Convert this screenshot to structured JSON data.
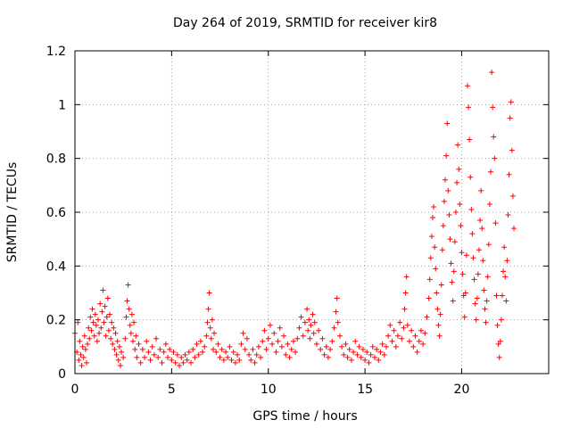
{
  "chart_data": {
    "type": "scatter",
    "title": "Day 264 of 2019, SRMTID for receiver kir8",
    "xlabel": "GPS time / hours",
    "ylabel": "SRMTID / TECUs",
    "xlim": [
      0,
      24.5
    ],
    "ylim": [
      0,
      1.2
    ],
    "x_ticks": [
      0,
      5,
      10,
      15,
      20
    ],
    "x_tick_labels": [
      "0",
      "5",
      "10",
      "15",
      "20"
    ],
    "y_ticks": [
      0,
      0.2,
      0.4,
      0.6,
      0.8,
      1,
      1.2
    ],
    "y_tick_labels": [
      "0",
      "0.2",
      "0.4",
      "0.6",
      "0.8",
      "1",
      "1.2"
    ],
    "grid": true,
    "marker": "+",
    "series": [
      {
        "name": "SRMTID",
        "color": "#ff0000",
        "points": [
          [
            0.0,
            0.15
          ],
          [
            0.1,
            0.08
          ],
          [
            0.15,
            0.19
          ],
          [
            0.2,
            0.05
          ],
          [
            0.25,
            0.12
          ],
          [
            0.3,
            0.07
          ],
          [
            0.35,
            0.03
          ],
          [
            0.4,
            0.1
          ],
          [
            0.45,
            0.06
          ],
          [
            0.5,
            0.14
          ],
          [
            0.55,
            0.09
          ],
          [
            0.6,
            0.04
          ],
          [
            0.65,
            0.11
          ],
          [
            0.7,
            0.17
          ],
          [
            0.75,
            0.13
          ],
          [
            0.8,
            0.21
          ],
          [
            0.85,
            0.16
          ],
          [
            0.9,
            0.24
          ],
          [
            0.95,
            0.19
          ],
          [
            1.0,
            0.14
          ],
          [
            1.05,
            0.22
          ],
          [
            1.1,
            0.18
          ],
          [
            1.15,
            0.12
          ],
          [
            1.2,
            0.2
          ],
          [
            1.25,
            0.15
          ],
          [
            1.3,
            0.26
          ],
          [
            1.35,
            0.17
          ],
          [
            1.4,
            0.23
          ],
          [
            1.45,
            0.31
          ],
          [
            1.5,
            0.19
          ],
          [
            1.55,
            0.25
          ],
          [
            1.6,
            0.14
          ],
          [
            1.65,
            0.21
          ],
          [
            1.7,
            0.28
          ],
          [
            1.75,
            0.16
          ],
          [
            1.8,
            0.22
          ],
          [
            1.85,
            0.13
          ],
          [
            1.9,
            0.19
          ],
          [
            1.95,
            0.11
          ],
          [
            2.0,
            0.17
          ],
          [
            2.05,
            0.09
          ],
          [
            2.1,
            0.15
          ],
          [
            2.15,
            0.07
          ],
          [
            2.2,
            0.12
          ],
          [
            2.25,
            0.05
          ],
          [
            2.3,
            0.1
          ],
          [
            2.35,
            0.03
          ],
          [
            2.4,
            0.08
          ],
          [
            2.5,
            0.06
          ],
          [
            2.6,
            0.13
          ],
          [
            2.65,
            0.21
          ],
          [
            2.7,
            0.27
          ],
          [
            2.75,
            0.33
          ],
          [
            2.8,
            0.24
          ],
          [
            2.85,
            0.18
          ],
          [
            2.9,
            0.15
          ],
          [
            2.95,
            0.22
          ],
          [
            3.0,
            0.12
          ],
          [
            3.05,
            0.19
          ],
          [
            3.1,
            0.09
          ],
          [
            3.15,
            0.14
          ],
          [
            3.2,
            0.06
          ],
          [
            3.3,
            0.11
          ],
          [
            3.4,
            0.04
          ],
          [
            3.5,
            0.09
          ],
          [
            3.6,
            0.06
          ],
          [
            3.7,
            0.12
          ],
          [
            3.8,
            0.08
          ],
          [
            3.9,
            0.05
          ],
          [
            4.0,
            0.1
          ],
          [
            4.1,
            0.07
          ],
          [
            4.2,
            0.13
          ],
          [
            4.3,
            0.06
          ],
          [
            4.4,
            0.09
          ],
          [
            4.5,
            0.04
          ],
          [
            4.6,
            0.08
          ],
          [
            4.7,
            0.11
          ],
          [
            4.8,
            0.06
          ],
          [
            4.9,
            0.09
          ],
          [
            5.0,
            0.05
          ],
          [
            5.1,
            0.08
          ],
          [
            5.2,
            0.04
          ],
          [
            5.3,
            0.07
          ],
          [
            5.4,
            0.03
          ],
          [
            5.5,
            0.06
          ],
          [
            5.6,
            0.04
          ],
          [
            5.7,
            0.07
          ],
          [
            5.8,
            0.05
          ],
          [
            5.9,
            0.08
          ],
          [
            6.0,
            0.04
          ],
          [
            6.1,
            0.09
          ],
          [
            6.2,
            0.06
          ],
          [
            6.3,
            0.11
          ],
          [
            6.4,
            0.07
          ],
          [
            6.5,
            0.12
          ],
          [
            6.6,
            0.08
          ],
          [
            6.7,
            0.1
          ],
          [
            6.8,
            0.14
          ],
          [
            6.85,
            0.19
          ],
          [
            6.9,
            0.24
          ],
          [
            6.95,
            0.3
          ],
          [
            7.0,
            0.17
          ],
          [
            7.05,
            0.13
          ],
          [
            7.1,
            0.2
          ],
          [
            7.15,
            0.09
          ],
          [
            7.2,
            0.15
          ],
          [
            7.3,
            0.08
          ],
          [
            7.4,
            0.11
          ],
          [
            7.5,
            0.06
          ],
          [
            7.6,
            0.09
          ],
          [
            7.7,
            0.05
          ],
          [
            7.8,
            0.08
          ],
          [
            7.9,
            0.06
          ],
          [
            8.0,
            0.1
          ],
          [
            8.1,
            0.05
          ],
          [
            8.2,
            0.08
          ],
          [
            8.3,
            0.04
          ],
          [
            8.4,
            0.07
          ],
          [
            8.5,
            0.05
          ],
          [
            8.6,
            0.11
          ],
          [
            8.7,
            0.15
          ],
          [
            8.8,
            0.09
          ],
          [
            8.9,
            0.13
          ],
          [
            9.0,
            0.07
          ],
          [
            9.1,
            0.05
          ],
          [
            9.2,
            0.09
          ],
          [
            9.3,
            0.04
          ],
          [
            9.4,
            0.07
          ],
          [
            9.5,
            0.1
          ],
          [
            9.6,
            0.06
          ],
          [
            9.7,
            0.12
          ],
          [
            9.8,
            0.16
          ],
          [
            9.9,
            0.09
          ],
          [
            10.0,
            0.13
          ],
          [
            10.1,
            0.18
          ],
          [
            10.2,
            0.11
          ],
          [
            10.3,
            0.15
          ],
          [
            10.4,
            0.08
          ],
          [
            10.5,
            0.12
          ],
          [
            10.6,
            0.17
          ],
          [
            10.7,
            0.1
          ],
          [
            10.8,
            0.14
          ],
          [
            10.9,
            0.07
          ],
          [
            11.0,
            0.11
          ],
          [
            11.1,
            0.06
          ],
          [
            11.2,
            0.09
          ],
          [
            11.3,
            0.12
          ],
          [
            11.4,
            0.08
          ],
          [
            11.5,
            0.13
          ],
          [
            11.6,
            0.17
          ],
          [
            11.7,
            0.21
          ],
          [
            11.8,
            0.14
          ],
          [
            11.9,
            0.19
          ],
          [
            12.0,
            0.24
          ],
          [
            12.05,
            0.16
          ],
          [
            12.1,
            0.2
          ],
          [
            12.15,
            0.13
          ],
          [
            12.2,
            0.18
          ],
          [
            12.3,
            0.22
          ],
          [
            12.35,
            0.15
          ],
          [
            12.4,
            0.19
          ],
          [
            12.5,
            0.11
          ],
          [
            12.6,
            0.16
          ],
          [
            12.7,
            0.09
          ],
          [
            12.8,
            0.13
          ],
          [
            12.9,
            0.07
          ],
          [
            13.0,
            0.1
          ],
          [
            13.1,
            0.06
          ],
          [
            13.2,
            0.09
          ],
          [
            13.3,
            0.12
          ],
          [
            13.4,
            0.17
          ],
          [
            13.5,
            0.23
          ],
          [
            13.55,
            0.28
          ],
          [
            13.6,
            0.19
          ],
          [
            13.7,
            0.14
          ],
          [
            13.8,
            0.1
          ],
          [
            13.9,
            0.07
          ],
          [
            14.0,
            0.11
          ],
          [
            14.1,
            0.06
          ],
          [
            14.2,
            0.09
          ],
          [
            14.3,
            0.05
          ],
          [
            14.4,
            0.08
          ],
          [
            14.5,
            0.12
          ],
          [
            14.6,
            0.07
          ],
          [
            14.7,
            0.1
          ],
          [
            14.8,
            0.06
          ],
          [
            14.9,
            0.09
          ],
          [
            15.0,
            0.05
          ],
          [
            15.1,
            0.08
          ],
          [
            15.2,
            0.04
          ],
          [
            15.3,
            0.07
          ],
          [
            15.4,
            0.1
          ],
          [
            15.5,
            0.06
          ],
          [
            15.6,
            0.09
          ],
          [
            15.7,
            0.05
          ],
          [
            15.8,
            0.08
          ],
          [
            15.9,
            0.11
          ],
          [
            16.0,
            0.07
          ],
          [
            16.1,
            0.1
          ],
          [
            16.2,
            0.14
          ],
          [
            16.3,
            0.18
          ],
          [
            16.4,
            0.12
          ],
          [
            16.5,
            0.16
          ],
          [
            16.6,
            0.1
          ],
          [
            16.7,
            0.14
          ],
          [
            16.8,
            0.19
          ],
          [
            16.9,
            0.13
          ],
          [
            17.0,
            0.17
          ],
          [
            17.05,
            0.24
          ],
          [
            17.1,
            0.3
          ],
          [
            17.15,
            0.36
          ],
          [
            17.2,
            0.18
          ],
          [
            17.3,
            0.12
          ],
          [
            17.4,
            0.16
          ],
          [
            17.5,
            0.1
          ],
          [
            17.6,
            0.14
          ],
          [
            17.7,
            0.08
          ],
          [
            17.8,
            0.12
          ],
          [
            17.9,
            0.16
          ],
          [
            18.0,
            0.11
          ],
          [
            18.1,
            0.15
          ],
          [
            18.2,
            0.21
          ],
          [
            18.3,
            0.28
          ],
          [
            18.35,
            0.35
          ],
          [
            18.4,
            0.43
          ],
          [
            18.45,
            0.51
          ],
          [
            18.5,
            0.58
          ],
          [
            18.55,
            0.62
          ],
          [
            18.6,
            0.47
          ],
          [
            18.65,
            0.39
          ],
          [
            18.7,
            0.3
          ],
          [
            18.75,
            0.24
          ],
          [
            18.8,
            0.18
          ],
          [
            18.85,
            0.14
          ],
          [
            18.9,
            0.22
          ],
          [
            18.95,
            0.33
          ],
          [
            19.0,
            0.46
          ],
          [
            19.05,
            0.55
          ],
          [
            19.1,
            0.64
          ],
          [
            19.15,
            0.72
          ],
          [
            19.2,
            0.81
          ],
          [
            19.25,
            0.93
          ],
          [
            19.3,
            0.68
          ],
          [
            19.35,
            0.59
          ],
          [
            19.4,
            0.5
          ],
          [
            19.45,
            0.41
          ],
          [
            19.5,
            0.34
          ],
          [
            19.55,
            0.27
          ],
          [
            19.6,
            0.38
          ],
          [
            19.65,
            0.49
          ],
          [
            19.7,
            0.6
          ],
          [
            19.75,
            0.71
          ],
          [
            19.8,
            0.85
          ],
          [
            19.85,
            0.76
          ],
          [
            19.9,
            0.63
          ],
          [
            19.95,
            0.55
          ],
          [
            20.0,
            0.45
          ],
          [
            20.05,
            0.37
          ],
          [
            20.1,
            0.29
          ],
          [
            20.15,
            0.21
          ],
          [
            20.2,
            0.3
          ],
          [
            20.25,
            0.44
          ],
          [
            20.3,
            1.07
          ],
          [
            20.35,
            0.99
          ],
          [
            20.4,
            0.87
          ],
          [
            20.45,
            0.73
          ],
          [
            20.5,
            0.61
          ],
          [
            20.55,
            0.52
          ],
          [
            20.6,
            0.43
          ],
          [
            20.65,
            0.35
          ],
          [
            20.7,
            0.26
          ],
          [
            20.75,
            0.2
          ],
          [
            20.8,
            0.28
          ],
          [
            20.85,
            0.37
          ],
          [
            20.9,
            0.46
          ],
          [
            20.95,
            0.57
          ],
          [
            21.0,
            0.68
          ],
          [
            21.05,
            0.54
          ],
          [
            21.1,
            0.42
          ],
          [
            21.15,
            0.31
          ],
          [
            21.2,
            0.24
          ],
          [
            21.25,
            0.19
          ],
          [
            21.3,
            0.27
          ],
          [
            21.35,
            0.36
          ],
          [
            21.4,
            0.48
          ],
          [
            21.45,
            0.63
          ],
          [
            21.5,
            0.75
          ],
          [
            21.55,
            1.12
          ],
          [
            21.6,
            0.99
          ],
          [
            21.65,
            0.88
          ],
          [
            21.7,
            0.8
          ],
          [
            21.75,
            0.56
          ],
          [
            21.8,
            0.29
          ],
          [
            21.85,
            0.18
          ],
          [
            21.9,
            0.11
          ],
          [
            21.95,
            0.06
          ],
          [
            22.0,
            0.12
          ],
          [
            22.05,
            0.2
          ],
          [
            22.1,
            0.29
          ],
          [
            22.15,
            0.38
          ],
          [
            22.2,
            0.47
          ],
          [
            22.25,
            0.36
          ],
          [
            22.3,
            0.27
          ],
          [
            22.35,
            0.42
          ],
          [
            22.4,
            0.59
          ],
          [
            22.45,
            0.74
          ],
          [
            22.5,
            0.95
          ],
          [
            22.55,
            1.01
          ],
          [
            22.6,
            0.83
          ],
          [
            22.65,
            0.66
          ],
          [
            22.7,
            0.54
          ]
        ]
      }
    ]
  }
}
